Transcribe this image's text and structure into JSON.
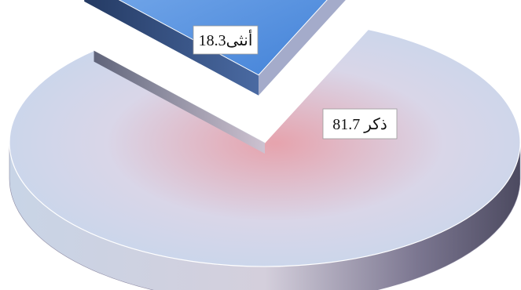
{
  "chart_data": {
    "type": "pie",
    "style": "3d-exploded",
    "slices": [
      {
        "label": "ذكر",
        "value": 81.7,
        "display": "ذكر 81.7",
        "color": "#c9c2d8"
      },
      {
        "label": "أنثى",
        "value": 18.3,
        "display": "أنثى18.3",
        "color": "#4a86d8"
      }
    ],
    "title": "",
    "legend": "none"
  }
}
